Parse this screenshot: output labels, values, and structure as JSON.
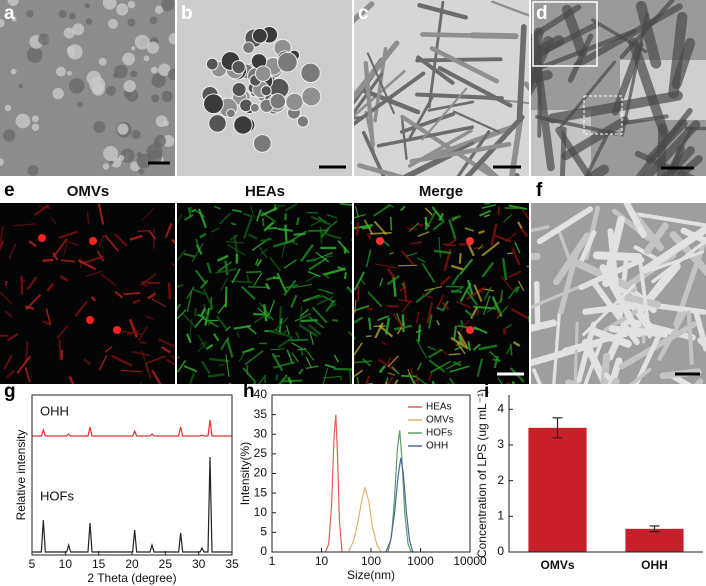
{
  "panel_labels": [
    "a",
    "b",
    "c",
    "d",
    "e",
    "f",
    "g",
    "h",
    "i"
  ],
  "image_labels": [
    "OMVs",
    "HEAs",
    "Merge"
  ],
  "chart_data": [
    {
      "type": "line",
      "x_label": "2 Theta (degree)",
      "y_label": "Relative intensity",
      "annotations": [
        "OHH",
        "HOFs"
      ],
      "x": [
        5,
        6.4,
        6.7,
        7.0,
        10.2,
        10.5,
        10.8,
        13.4,
        13.7,
        14.0,
        20.1,
        20.4,
        20.7,
        22.7,
        23.0,
        23.3,
        27.0,
        27.3,
        27.6,
        30.2,
        30.5,
        30.8,
        31.4,
        31.7,
        32.0,
        35
      ],
      "series": [
        {
          "name": "OHH",
          "color": "#e8302a",
          "values": [
            119,
            119,
            125,
            119,
            119,
            121,
            119,
            119,
            128,
            119,
            119,
            124,
            119,
            119,
            121,
            119,
            119,
            128,
            119,
            119,
            120,
            119,
            119,
            135,
            119,
            119
          ]
        },
        {
          "name": "HOFs",
          "color": "#222222",
          "values": [
            3,
            3,
            35,
            3,
            3,
            10,
            3,
            3,
            32,
            3,
            3,
            25,
            3,
            3,
            10,
            3,
            3,
            22,
            3,
            3,
            7,
            3,
            3,
            98,
            3,
            3
          ]
        }
      ],
      "xlim": [
        5,
        35
      ],
      "xticks": [
        5,
        10,
        15,
        20,
        25,
        30,
        35
      ],
      "ylim": [
        0,
        160
      ]
    },
    {
      "type": "line",
      "x_label": "Size(nm)",
      "y_label": "Intensity(%)",
      "xlog": true,
      "legend": "upper right",
      "series": [
        {
          "name": "HEAs",
          "color": "#e0604e",
          "x": [
            12,
            14,
            16,
            18,
            19.5,
            21,
            23,
            26
          ],
          "values": [
            0,
            2,
            12,
            30,
            35,
            25,
            8,
            0
          ]
        },
        {
          "name": "OMVs",
          "color": "#d9b56a",
          "x": [
            35,
            45,
            55,
            65,
            75,
            90,
            105,
            130,
            160
          ],
          "values": [
            0,
            3,
            8,
            13,
            16.5,
            13,
            7,
            2,
            0
          ]
        },
        {
          "name": "HOFs",
          "color": "#5e9e66",
          "x": [
            220,
            260,
            300,
            340,
            380,
            420,
            480,
            560,
            650
          ],
          "values": [
            0,
            4,
            14,
            26,
            31,
            24,
            10,
            2,
            0
          ]
        },
        {
          "name": "OHH",
          "color": "#4a6a9c",
          "x": [
            200,
            250,
            300,
            350,
            400,
            450,
            520,
            600,
            700
          ],
          "values": [
            0,
            3,
            10,
            19,
            24,
            20,
            10,
            3,
            0
          ]
        }
      ],
      "xlim": [
        1,
        10000
      ],
      "xticks": [
        1,
        10,
        100,
        1000,
        10000
      ],
      "ylim": [
        0,
        40
      ],
      "yticks": [
        0,
        5,
        10,
        15,
        20,
        25,
        30,
        35,
        40
      ]
    },
    {
      "type": "bar",
      "y_label": "Concentration of LPS (ug mL⁻¹)",
      "categories": [
        "OMVs",
        "OHH"
      ],
      "values": [
        3.48,
        0.65
      ],
      "errors": [
        0.28,
        0.08
      ],
      "color": "#c8202a",
      "ylim": [
        0,
        4.4
      ],
      "yticks": [
        0,
        1,
        2,
        3,
        4
      ]
    }
  ]
}
